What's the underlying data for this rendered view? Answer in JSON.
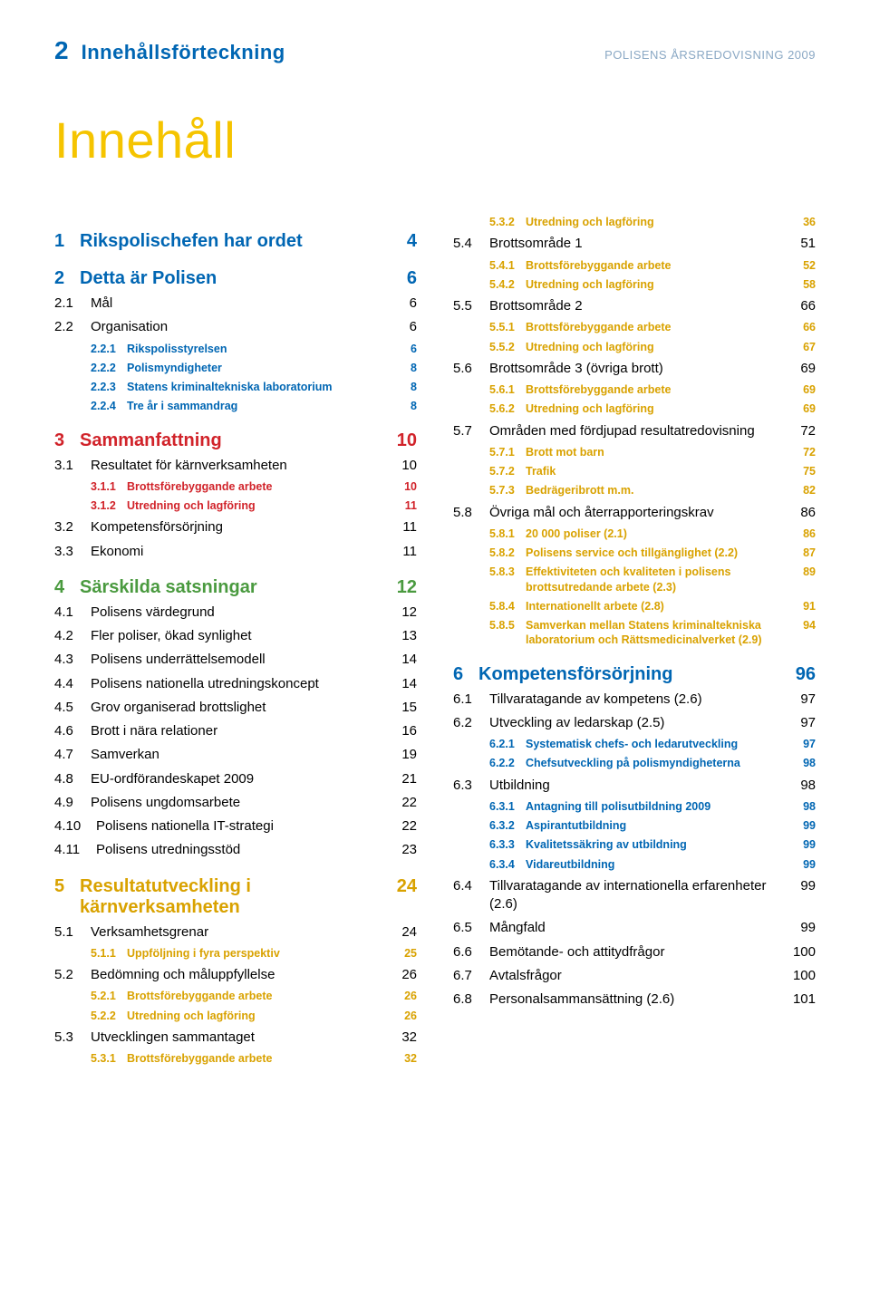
{
  "header": {
    "page_num": "2",
    "left": "Innehållsförteckning",
    "right": "POLISENS ÅRSREDOVISNING 2009"
  },
  "main_title": "Innehåll",
  "colors": {
    "blue": "#0066b3",
    "red": "#d1232a",
    "green": "#4a9a3f",
    "gold": "#d9a200",
    "yellow_title": "#f5c400",
    "body_text": "#000000",
    "header_right": "#8aa8c4"
  },
  "left_column": [
    {
      "type": "section",
      "color": "blue",
      "num": "1",
      "title": "Rikspolischefen har ordet",
      "page": "4"
    },
    {
      "type": "section",
      "color": "blue",
      "num": "2",
      "title": "Detta är Polisen",
      "page": "6"
    },
    {
      "type": "sub",
      "num": "2.1",
      "title": "Mål",
      "page": "6"
    },
    {
      "type": "sub",
      "num": "2.2",
      "title": "Organisation",
      "page": "6"
    },
    {
      "type": "subsub",
      "color": "blue",
      "num": "2.2.1",
      "title": "Rikspolisstyrelsen",
      "page": "6"
    },
    {
      "type": "subsub",
      "color": "blue",
      "num": "2.2.2",
      "title": "Polismyndigheter",
      "page": "8"
    },
    {
      "type": "subsub",
      "color": "blue",
      "num": "2.2.3",
      "title": "Statens kriminaltekniska laboratorium",
      "page": "8"
    },
    {
      "type": "subsub",
      "color": "blue",
      "num": "2.2.4",
      "title": "Tre år i sammandrag",
      "page": "8"
    },
    {
      "type": "section",
      "color": "red",
      "num": "3",
      "title": "Sammanfattning",
      "page": "10"
    },
    {
      "type": "sub",
      "num": "3.1",
      "title": "Resultatet för kärnverksamheten",
      "page": "10"
    },
    {
      "type": "subsub",
      "color": "red",
      "num": "3.1.1",
      "title": "Brottsförebyggande arbete",
      "page": "10"
    },
    {
      "type": "subsub",
      "color": "red",
      "num": "3.1.2",
      "title": "Utredning och lagföring",
      "page": "11"
    },
    {
      "type": "sub",
      "num": "3.2",
      "title": "Kompetensförsörjning",
      "page": "11"
    },
    {
      "type": "sub",
      "num": "3.3",
      "title": "Ekonomi",
      "page": "11"
    },
    {
      "type": "section",
      "color": "green",
      "num": "4",
      "title": "Särskilda satsningar",
      "page": "12"
    },
    {
      "type": "sub",
      "num": "4.1",
      "title": "Polisens värdegrund",
      "page": "12"
    },
    {
      "type": "sub",
      "num": "4.2",
      "title": "Fler poliser, ökad synlighet",
      "page": "13"
    },
    {
      "type": "sub",
      "num": "4.3",
      "title": "Polisens underrättelsemodell",
      "page": "14"
    },
    {
      "type": "sub",
      "num": "4.4",
      "title": "Polisens nationella utrednings­koncept",
      "page": "14"
    },
    {
      "type": "sub",
      "num": "4.5",
      "title": "Grov organiserad brottslighet",
      "page": "15"
    },
    {
      "type": "sub",
      "num": "4.6",
      "title": "Brott i nära relationer",
      "page": "16"
    },
    {
      "type": "sub",
      "num": "4.7",
      "title": "Samverkan",
      "page": "19"
    },
    {
      "type": "sub",
      "num": "4.8",
      "title": "EU-ordförandeskapet 2009",
      "page": "21"
    },
    {
      "type": "sub",
      "num": "4.9",
      "title": "Polisens ungdomsarbete",
      "page": "22"
    },
    {
      "type": "sub",
      "wide": true,
      "num": "4.10",
      "title": "Polisens nationella IT-strategi",
      "page": "22"
    },
    {
      "type": "sub",
      "wide": true,
      "num": "4.11",
      "title": "Polisens utredningsstöd",
      "page": "23"
    },
    {
      "type": "section",
      "color": "gold",
      "num": "5",
      "title": "Resultatutveckling i kärnverksamheten",
      "page": "24"
    },
    {
      "type": "sub",
      "num": "5.1",
      "title": "Verksamhetsgrenar",
      "page": "24"
    },
    {
      "type": "subsub",
      "color": "gold",
      "num": "5.1.1",
      "title": "Uppföljning i fyra perspektiv",
      "page": "25"
    },
    {
      "type": "sub",
      "num": "5.2",
      "title": "Bedömning och måluppfyllelse",
      "page": "26"
    },
    {
      "type": "subsub",
      "color": "gold",
      "num": "5.2.1",
      "title": "Brottsförebyggande arbete",
      "page": "26"
    },
    {
      "type": "subsub",
      "color": "gold",
      "num": "5.2.2",
      "title": "Utredning och lagföring",
      "page": "26"
    },
    {
      "type": "sub",
      "num": "5.3",
      "title": "Utvecklingen sammantaget",
      "page": "32"
    },
    {
      "type": "subsub",
      "color": "gold",
      "num": "5.3.1",
      "title": "Brottsförebyggande arbete",
      "page": "32"
    }
  ],
  "right_column": [
    {
      "type": "subsub",
      "color": "gold",
      "num": "5.3.2",
      "title": "Utredning och lagföring",
      "page": "36",
      "first": true
    },
    {
      "type": "sub",
      "num": "5.4",
      "title": "Brottsområde 1",
      "page": "51"
    },
    {
      "type": "subsub",
      "color": "gold",
      "num": "5.4.1",
      "title": "Brottsförebyggande arbete",
      "page": "52"
    },
    {
      "type": "subsub",
      "color": "gold",
      "num": "5.4.2",
      "title": "Utredning och lagföring",
      "page": "58"
    },
    {
      "type": "sub",
      "num": "5.5",
      "title": "Brottsområde 2",
      "page": "66"
    },
    {
      "type": "subsub",
      "color": "gold",
      "num": "5.5.1",
      "title": "Brottsförebyggande arbete",
      "page": "66"
    },
    {
      "type": "subsub",
      "color": "gold",
      "num": "5.5.2",
      "title": "Utredning och lagföring",
      "page": "67"
    },
    {
      "type": "sub",
      "num": "5.6",
      "title": "Brottsområde 3 (övriga brott)",
      "page": "69"
    },
    {
      "type": "subsub",
      "color": "gold",
      "num": "5.6.1",
      "title": "Brottsförebyggande arbete",
      "page": "69"
    },
    {
      "type": "subsub",
      "color": "gold",
      "num": "5.6.2",
      "title": "Utredning och lagföring",
      "page": "69"
    },
    {
      "type": "sub",
      "num": "5.7",
      "title": "Områden med fördjupad resultat­redovisning",
      "page": "72"
    },
    {
      "type": "subsub",
      "color": "gold",
      "num": "5.7.1",
      "title": "Brott mot barn",
      "page": "72"
    },
    {
      "type": "subsub",
      "color": "gold",
      "num": "5.7.2",
      "title": "Trafik",
      "page": "75"
    },
    {
      "type": "subsub",
      "color": "gold",
      "num": "5.7.3",
      "title": "Bedrägeribrott m.m.",
      "page": "82"
    },
    {
      "type": "sub",
      "num": "5.8",
      "title": "Övriga mål och åter­rapporteringskrav",
      "page": "86"
    },
    {
      "type": "subsub",
      "color": "gold",
      "num": "5.8.1",
      "title": "20 000 poliser (2.1)",
      "page": "86"
    },
    {
      "type": "subsub",
      "color": "gold",
      "num": "5.8.2",
      "title": "Polisens service och tillgänglighet (2.2)",
      "page": "87"
    },
    {
      "type": "subsub",
      "color": "gold",
      "num": "5.8.3",
      "title": "Effektiviteten och kvaliteten i polisens brottsutredande arbete (2.3)",
      "page": "89"
    },
    {
      "type": "subsub",
      "color": "gold",
      "num": "5.8.4",
      "title": "Internationellt arbete (2.8)",
      "page": "91"
    },
    {
      "type": "subsub",
      "color": "gold",
      "num": "5.8.5",
      "title": "Samverkan mellan Statens kriminaltekniska laboratorium och Rättsmedicinalverket (2.9)",
      "page": "94"
    },
    {
      "type": "section",
      "color": "blue",
      "num": "6",
      "title": "Kompetensförsörjning",
      "page": "96"
    },
    {
      "type": "sub",
      "num": "6.1",
      "title": "Tillvaratagande av kompetens (2.6)",
      "page": "97"
    },
    {
      "type": "sub",
      "num": "6.2",
      "title": "Utveckling av ledarskap (2.5)",
      "page": "97"
    },
    {
      "type": "subsub",
      "color": "blue",
      "num": "6.2.1",
      "title": "Systematisk chefs- och ledarutveckling",
      "page": "97"
    },
    {
      "type": "subsub",
      "color": "blue",
      "num": "6.2.2",
      "title": "Chefsutveckling på polis­myndigheterna",
      "page": "98"
    },
    {
      "type": "sub",
      "num": "6.3",
      "title": "Utbildning",
      "page": "98"
    },
    {
      "type": "subsub",
      "color": "blue",
      "num": "6.3.1",
      "title": "Antagning till polisutbildning 2009",
      "page": "98"
    },
    {
      "type": "subsub",
      "color": "blue",
      "num": "6.3.2",
      "title": "Aspirantutbildning",
      "page": "99"
    },
    {
      "type": "subsub",
      "color": "blue",
      "num": "6.3.3",
      "title": "Kvalitetssäkring av utbildning",
      "page": "99"
    },
    {
      "type": "subsub",
      "color": "blue",
      "num": "6.3.4",
      "title": "Vidareutbildning",
      "page": "99"
    },
    {
      "type": "sub",
      "num": "6.4",
      "title": "Tillvaratagande av internationella erfarenheter (2.6)",
      "page": "99"
    },
    {
      "type": "sub",
      "num": "6.5",
      "title": "Mångfald",
      "page": "99"
    },
    {
      "type": "sub",
      "num": "6.6",
      "title": "Bemötande- och attitydfrågor",
      "page": "100"
    },
    {
      "type": "sub",
      "num": "6.7",
      "title": "Avtalsfrågor",
      "page": "100"
    },
    {
      "type": "sub",
      "num": "6.8",
      "title": "Personalsammansättning (2.6)",
      "page": "101"
    }
  ]
}
